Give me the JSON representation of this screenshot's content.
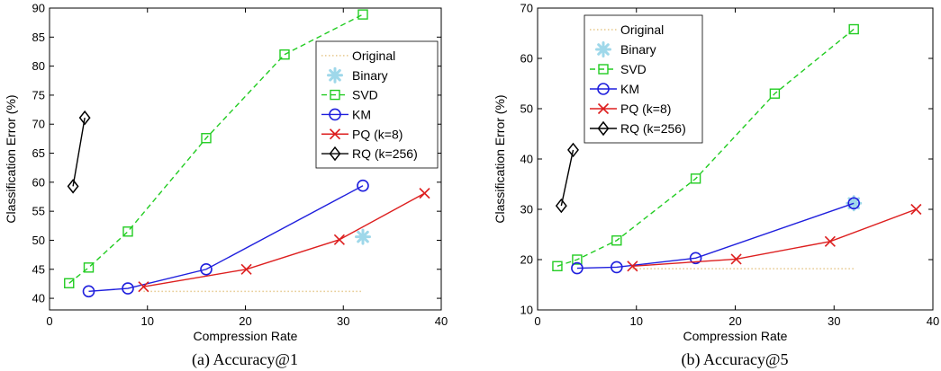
{
  "chart_data": [
    {
      "type": "line",
      "caption": "(a)  Accuracy@1",
      "xlabel": "Compression Rate",
      "ylabel": "Classification Error (%)",
      "xlim": [
        0,
        40
      ],
      "ylim": [
        38,
        90
      ],
      "xticks": [
        0,
        10,
        20,
        30,
        40
      ],
      "yticks": [
        40,
        45,
        50,
        55,
        60,
        65,
        70,
        75,
        80,
        85,
        90
      ],
      "grid": false,
      "legend_position": "top-right",
      "series": [
        {
          "name": "Original",
          "color": "#e6c88c",
          "style": "dotted",
          "marker": "none",
          "x": [
            9.6,
            32
          ],
          "y": [
            41.2,
            41.2
          ]
        },
        {
          "name": "Binary",
          "color": "#9fd8ea",
          "style": "none",
          "marker": "star",
          "x": [
            32
          ],
          "y": [
            50.6
          ]
        },
        {
          "name": "SVD",
          "color": "#22cc22",
          "style": "dashed",
          "marker": "square",
          "x": [
            2,
            4,
            8,
            16,
            24,
            32
          ],
          "y": [
            42.6,
            45.3,
            51.5,
            67.6,
            82.0,
            88.9
          ]
        },
        {
          "name": "KM",
          "color": "#1f1fdd",
          "style": "solid",
          "marker": "circle",
          "x": [
            4,
            8,
            16,
            32
          ],
          "y": [
            41.2,
            41.7,
            45.0,
            59.4
          ]
        },
        {
          "name": "PQ (k=8)",
          "color": "#dd1f1f",
          "style": "solid",
          "marker": "x",
          "x": [
            9.6,
            20.1,
            29.6,
            38.3
          ],
          "y": [
            42.0,
            45.0,
            50.1,
            58.1
          ]
        },
        {
          "name": "RQ (k=256)",
          "color": "#000000",
          "style": "solid",
          "marker": "diamond",
          "x": [
            2.4,
            3.6
          ],
          "y": [
            59.3,
            71.1
          ]
        }
      ]
    },
    {
      "type": "line",
      "caption": "(b)  Accuracy@5",
      "xlabel": "Compression Rate",
      "ylabel": "Classification Error (%)",
      "xlim": [
        0,
        40
      ],
      "ylim": [
        10,
        70
      ],
      "xticks": [
        0,
        10,
        20,
        30,
        40
      ],
      "yticks": [
        10,
        20,
        30,
        40,
        50,
        60,
        70
      ],
      "grid": false,
      "legend_position": "top-left",
      "series": [
        {
          "name": "Original",
          "color": "#e6c88c",
          "style": "dotted",
          "marker": "none",
          "x": [
            9.6,
            32
          ],
          "y": [
            18.2,
            18.2
          ]
        },
        {
          "name": "Binary",
          "color": "#9fd8ea",
          "style": "none",
          "marker": "star",
          "x": [
            32
          ],
          "y": [
            31.2
          ]
        },
        {
          "name": "SVD",
          "color": "#22cc22",
          "style": "dashed",
          "marker": "square",
          "x": [
            2,
            4,
            8,
            16,
            24,
            32
          ],
          "y": [
            18.7,
            20.0,
            23.8,
            36.1,
            53.0,
            65.8
          ]
        },
        {
          "name": "KM",
          "color": "#1f1fdd",
          "style": "solid",
          "marker": "circle",
          "x": [
            4,
            8,
            16,
            32
          ],
          "y": [
            18.3,
            18.5,
            20.3,
            31.2
          ]
        },
        {
          "name": "PQ (k=8)",
          "color": "#dd1f1f",
          "style": "solid",
          "marker": "x",
          "x": [
            9.6,
            20.1,
            29.6,
            38.3
          ],
          "y": [
            18.7,
            20.1,
            23.6,
            30.0
          ]
        },
        {
          "name": "RQ (k=256)",
          "color": "#000000",
          "style": "solid",
          "marker": "diamond",
          "x": [
            2.4,
            3.6
          ],
          "y": [
            30.7,
            41.8
          ]
        }
      ]
    }
  ]
}
